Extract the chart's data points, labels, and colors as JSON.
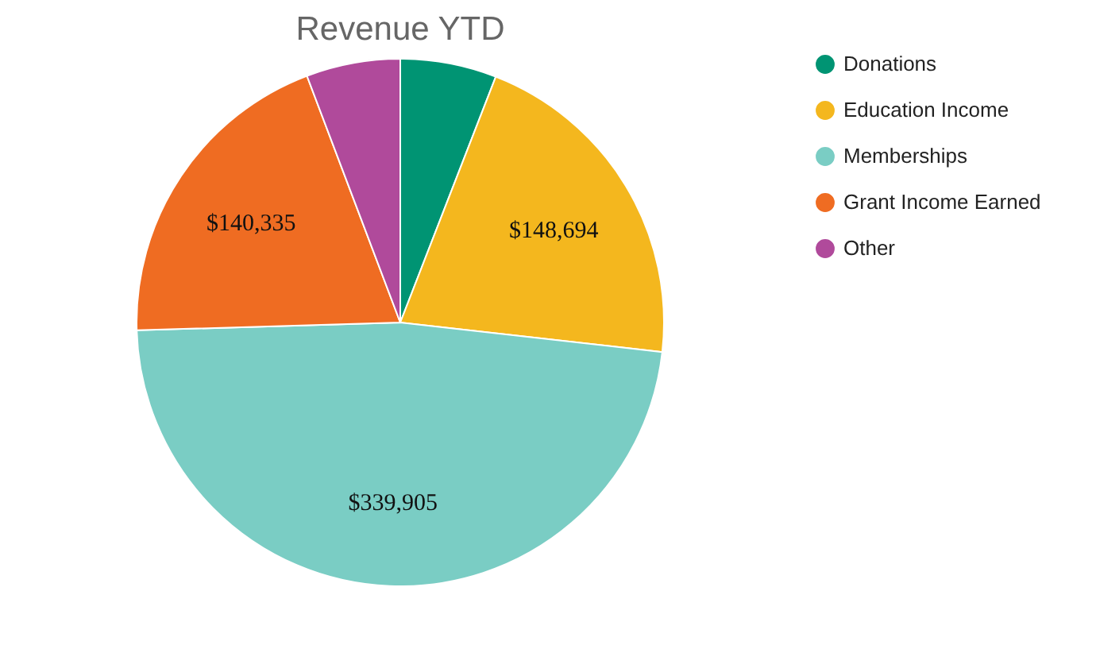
{
  "chart_data": {
    "type": "pie",
    "title": "Revenue YTD",
    "categories": [
      "Donations",
      "Education Income",
      "Memberships",
      "Grant Income Earned",
      "Other"
    ],
    "values": [
      42000,
      148694,
      339905,
      140335,
      41000
    ],
    "value_labels": [
      null,
      "$148,694",
      "$339,905",
      "$140,335",
      null
    ],
    "colors": [
      "#009473",
      "#f4b71e",
      "#7acdc4",
      "#ef6c22",
      "#b04a9b"
    ],
    "legend": "top right"
  }
}
